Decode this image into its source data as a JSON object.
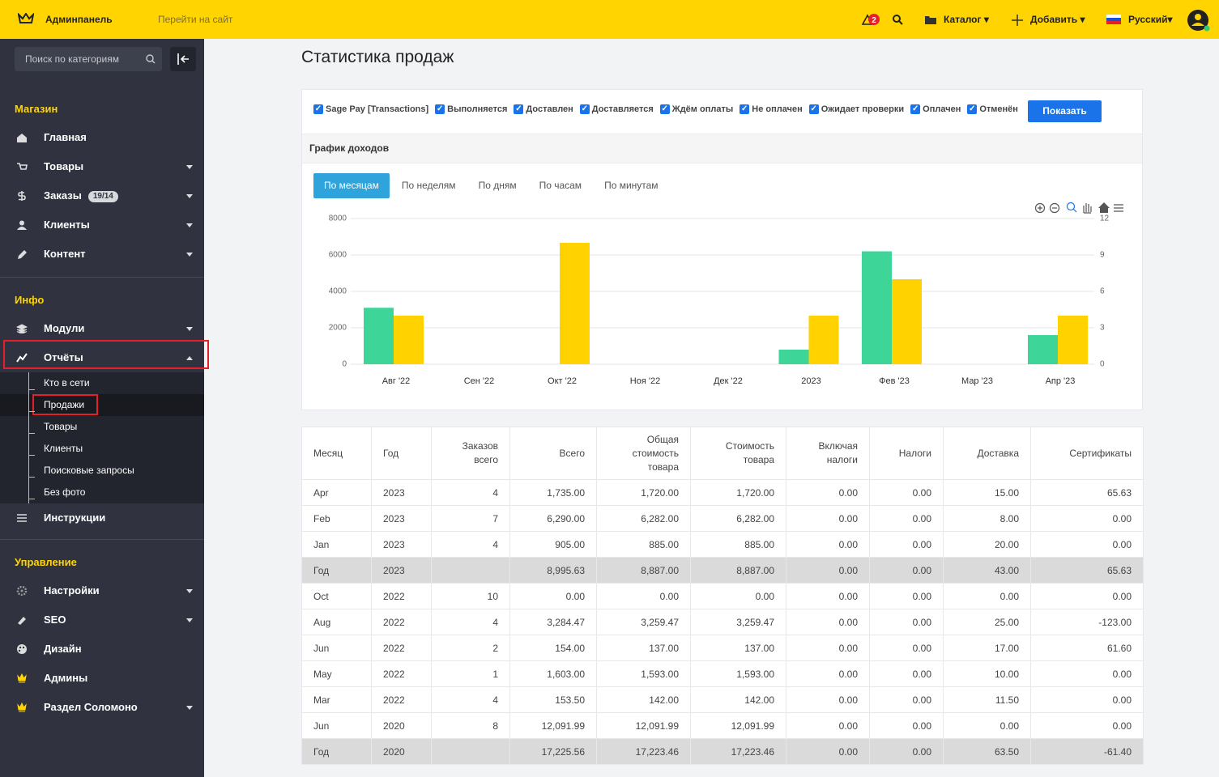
{
  "topbar": {
    "brand": "Админпанель",
    "site_link": "Перейти на сайт",
    "alerts": "2",
    "catalog": "Каталог",
    "add": "Добавить",
    "language": "Русский"
  },
  "sidebar": {
    "search_placeholder": "Поиск по категориям",
    "sections": [
      {
        "title": "Магазин",
        "items": [
          {
            "label": "Главная",
            "icon": "home"
          },
          {
            "label": "Товары",
            "icon": "cart",
            "caret": true
          },
          {
            "label": "Заказы",
            "icon": "dollar",
            "badge": "19/14",
            "caret": true
          },
          {
            "label": "Клиенты",
            "icon": "user",
            "caret": true
          },
          {
            "label": "Контент",
            "icon": "pencil",
            "caret": true
          }
        ]
      },
      {
        "title": "Инфо",
        "items": [
          {
            "label": "Модули",
            "icon": "layers",
            "caret": true
          },
          {
            "label": "Отчёты",
            "icon": "chart",
            "caret": true,
            "active": true,
            "children": [
              {
                "label": "Кто в сети"
              },
              {
                "label": "Продажи",
                "active": true
              },
              {
                "label": "Товары"
              },
              {
                "label": "Клиенты"
              },
              {
                "label": "Поисковые запросы"
              },
              {
                "label": "Без фото"
              }
            ]
          },
          {
            "label": "Инструкции",
            "icon": "menu"
          }
        ]
      },
      {
        "title": "Управление",
        "items": [
          {
            "label": "Настройки",
            "icon": "gear",
            "caret": true
          },
          {
            "label": "SEO",
            "icon": "tag",
            "caret": true
          },
          {
            "label": "Дизайн",
            "icon": "palette"
          },
          {
            "label": "Админы",
            "icon": "crown"
          },
          {
            "label": "Раздел Соломоно",
            "icon": "crown",
            "caret": true
          }
        ]
      }
    ]
  },
  "main": {
    "title": "Статистика продаж",
    "filters": [
      "Sage Pay [Transactions]",
      "Выполняется",
      "Доставлен",
      "Доставляется",
      "Ждём оплаты",
      "Не оплачен",
      "Ожидает проверки",
      "Оплачен",
      "Отменён"
    ],
    "show_button": "Показать",
    "tabs": {
      "items": [
        "По месяцам",
        "По неделям",
        "По дням",
        "По часам",
        "По минутам"
      ],
      "active": 0
    }
  },
  "chart_data": {
    "type": "bar",
    "title": "График доходов",
    "categories": [
      "Авг '22",
      "Сен '22",
      "Окт '22",
      "Ноя '22",
      "Дек '22",
      "2023",
      "Фев '23",
      "Мар '23",
      "Апр '23"
    ],
    "series": [
      {
        "color": "#3dd598",
        "values": [
          3100,
          null,
          0,
          null,
          null,
          800,
          6200,
          null,
          1600
        ]
      },
      {
        "color": "#ffd200",
        "axis": "y2",
        "values": [
          4,
          null,
          10,
          null,
          null,
          4,
          7,
          null,
          4
        ]
      }
    ],
    "ylim": [
      0,
      8000
    ],
    "yticks": [
      0,
      2000,
      4000,
      6000,
      8000
    ],
    "y2lim": [
      0,
      12
    ],
    "y2ticks": [
      0,
      3,
      6,
      9,
      12
    ],
    "grid": true
  },
  "table": {
    "headers": [
      "Месяц",
      "Год",
      "Заказов всего",
      "Всего",
      "Общая стоимость товара",
      "Стоимость товара",
      "Включая налоги",
      "Налоги",
      "Доставка",
      "Сертификаты"
    ],
    "rows": [
      {
        "cells": [
          "Apr",
          "2023",
          "4",
          "1,735.00",
          "1,720.00",
          "1,720.00",
          "0.00",
          "0.00",
          "15.00",
          "65.63"
        ]
      },
      {
        "cells": [
          "Feb",
          "2023",
          "7",
          "6,290.00",
          "6,282.00",
          "6,282.00",
          "0.00",
          "0.00",
          "8.00",
          "0.00"
        ]
      },
      {
        "cells": [
          "Jan",
          "2023",
          "4",
          "905.00",
          "885.00",
          "885.00",
          "0.00",
          "0.00",
          "20.00",
          "0.00"
        ]
      },
      {
        "cells": [
          "Год",
          "2023",
          null,
          "8,995.63",
          "8,887.00",
          "8,887.00",
          "0.00",
          "0.00",
          "43.00",
          "65.63"
        ],
        "highlight": true
      },
      {
        "cells": [
          "Oct",
          "2022",
          "10",
          "0.00",
          "0.00",
          "0.00",
          "0.00",
          "0.00",
          "0.00",
          "0.00"
        ]
      },
      {
        "cells": [
          "Aug",
          "2022",
          "4",
          "3,284.47",
          "3,259.47",
          "3,259.47",
          "0.00",
          "0.00",
          "25.00",
          "-123.00"
        ]
      },
      {
        "cells": [
          "Jun",
          "2022",
          "2",
          "154.00",
          "137.00",
          "137.00",
          "0.00",
          "0.00",
          "17.00",
          "61.60"
        ]
      },
      {
        "cells": [
          "May",
          "2022",
          "1",
          "1,603.00",
          "1,593.00",
          "1,593.00",
          "0.00",
          "0.00",
          "10.00",
          "0.00"
        ]
      },
      {
        "cells": [
          "Mar",
          "2022",
          "4",
          "153.50",
          "142.00",
          "142.00",
          "0.00",
          "0.00",
          "11.50",
          "0.00"
        ]
      },
      {
        "cells": [
          "Jun",
          "2020",
          "8",
          "12,091.99",
          "12,091.99",
          "12,091.99",
          "0.00",
          "0.00",
          "0.00",
          "0.00"
        ]
      },
      {
        "cells": [
          "Год",
          "2020",
          null,
          "17,225.56",
          "17,223.46",
          "17,223.46",
          "0.00",
          "0.00",
          "63.50",
          "-61.40"
        ],
        "highlight": true
      }
    ]
  }
}
